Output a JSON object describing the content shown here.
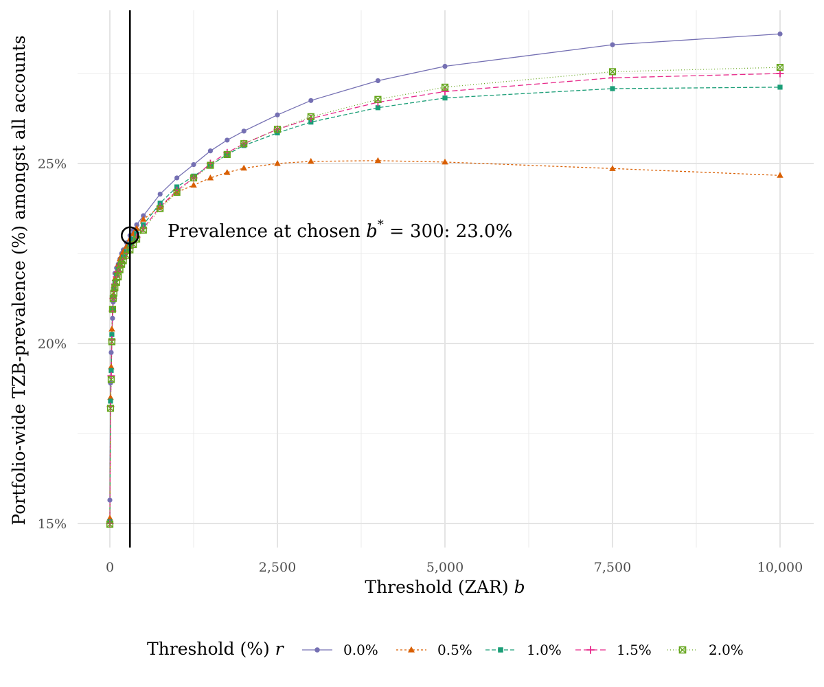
{
  "chart_data": {
    "type": "line",
    "xlabel": "Threshold (ZAR)",
    "xlabel_var": "b",
    "ylabel": "Portfolio-wide TZB-prevalence (%) amongst all accounts",
    "xlim": [
      -400,
      10400
    ],
    "ylim": [
      14.5,
      29.7
    ],
    "x_ticks": [
      0,
      2500,
      5000,
      7500,
      10000
    ],
    "x_tick_labels": [
      "0",
      "2,500",
      "5,000",
      "7,500",
      "10,000"
    ],
    "y_ticks": [
      15,
      20,
      25
    ],
    "y_tick_labels": [
      "15%",
      "20%",
      "25%"
    ],
    "grid": true,
    "legend_position": "bottom",
    "legend_title": "Threshold (%)",
    "legend_title_var": "r",
    "vline_x": 300,
    "highlight_point": {
      "x": 300,
      "y": 23.0
    },
    "annotation": {
      "text_before": "Prevalence at chosen ",
      "symbol": "b",
      "superscript": "*",
      "text_after": " = 300:  23.0%"
    },
    "x": [
      0,
      10,
      20,
      30,
      40,
      50,
      60,
      75,
      100,
      125,
      150,
      175,
      200,
      250,
      300,
      350,
      400,
      500,
      750,
      1000,
      1250,
      1500,
      1750,
      2000,
      2500,
      3000,
      4000,
      5000,
      7500,
      10000
    ],
    "series": [
      {
        "name": "0.0%",
        "color": "#7570b3",
        "marker": "circle",
        "dash": "",
        "values": [
          15.65,
          18.9,
          19.75,
          20.25,
          20.7,
          21.15,
          21.6,
          21.95,
          22.1,
          22.2,
          22.35,
          22.5,
          22.6,
          22.8,
          23.0,
          23.15,
          23.3,
          23.55,
          24.15,
          24.6,
          24.97,
          25.35,
          25.65,
          25.9,
          26.35,
          26.75,
          27.3,
          27.7,
          28.3,
          28.6
        ]
      },
      {
        "name": "0.5%",
        "color": "#d95f02",
        "marker": "triangle",
        "dash": "3,3",
        "values": [
          15.15,
          18.5,
          19.35,
          20.4,
          20.95,
          21.35,
          21.6,
          21.8,
          22.0,
          22.2,
          22.35,
          22.45,
          22.55,
          22.7,
          22.9,
          23.05,
          23.2,
          23.45,
          23.8,
          24.2,
          24.4,
          24.6,
          24.75,
          24.87,
          25.0,
          25.06,
          25.08,
          25.04,
          24.86,
          24.67
        ]
      },
      {
        "name": "1.0%",
        "color": "#1b9e77",
        "marker": "square",
        "dash": "6,3",
        "values": [
          15.05,
          18.4,
          19.25,
          20.25,
          20.95,
          21.3,
          21.5,
          21.7,
          21.9,
          22.05,
          22.2,
          22.3,
          22.4,
          22.55,
          22.75,
          22.9,
          23.05,
          23.3,
          23.9,
          24.35,
          24.65,
          24.95,
          25.25,
          25.5,
          25.85,
          26.15,
          26.55,
          26.82,
          27.08,
          27.12
        ]
      },
      {
        "name": "1.5%",
        "color": "#e7298a",
        "marker": "plus",
        "dash": "8,4",
        "values": [
          15.0,
          18.25,
          19.1,
          20.1,
          20.9,
          21.25,
          21.45,
          21.65,
          21.85,
          22.0,
          22.15,
          22.25,
          22.35,
          22.5,
          22.65,
          22.8,
          22.95,
          23.2,
          23.8,
          24.25,
          24.6,
          25.0,
          25.3,
          25.55,
          25.95,
          26.25,
          26.7,
          27.0,
          27.38,
          27.5
        ]
      },
      {
        "name": "2.0%",
        "color": "#66a61e",
        "marker": "box-x",
        "dash": "1,3",
        "values": [
          14.98,
          18.2,
          19.0,
          20.05,
          20.95,
          21.25,
          21.4,
          21.55,
          21.7,
          21.85,
          22.05,
          22.2,
          22.3,
          22.45,
          22.6,
          22.75,
          22.9,
          23.15,
          23.75,
          24.2,
          24.6,
          24.95,
          25.25,
          25.55,
          25.95,
          26.3,
          26.78,
          27.12,
          27.55,
          27.67
        ]
      }
    ]
  }
}
